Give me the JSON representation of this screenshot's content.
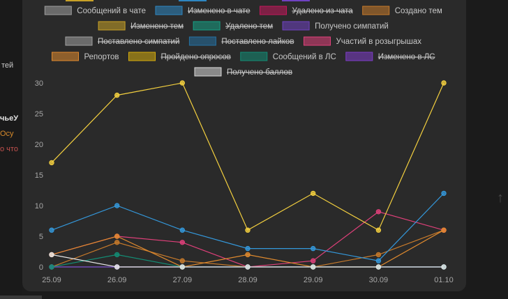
{
  "page": {
    "left_fragments": [
      "тей",
      "чьеУ",
      "Осу",
      "о что"
    ],
    "scroll_up_icon": "arrow-up-icon"
  },
  "chart_data": {
    "type": "line",
    "title": "",
    "xlabel": "",
    "ylabel": "",
    "categories": [
      "25.09",
      "26.09",
      "27.09",
      "28.09",
      "29.09",
      "30.09",
      "01.10"
    ],
    "ylim": [
      0,
      30
    ],
    "yticks": [
      0,
      5,
      10,
      15,
      20,
      25,
      30
    ],
    "grid": false,
    "legend_position": "top",
    "series": [
      {
        "name": "Сообщений в чате",
        "color": "#9e9e9e",
        "hidden": false,
        "values": [
          0,
          0,
          0,
          0,
          0,
          0,
          0
        ]
      },
      {
        "name": "Изменено в чате",
        "color": "#2e86c1",
        "hidden": true,
        "values": null
      },
      {
        "name": "Удалено из чата",
        "color": "#c2185b",
        "hidden": true,
        "values": null
      },
      {
        "name": "Создано тем",
        "color": "#c77a2a",
        "hidden": false,
        "values": [
          0,
          4,
          1,
          0,
          0,
          2,
          6
        ]
      },
      {
        "name": "Изменено тем",
        "color": "#c9a227",
        "hidden": true,
        "values": null
      },
      {
        "name": "Удалено тем",
        "color": "#16a085",
        "hidden": true,
        "values": null
      },
      {
        "name": "Получено симпатий",
        "color": "#6f42c1",
        "hidden": false,
        "values": [
          0,
          0,
          0,
          0,
          0,
          0,
          0
        ]
      },
      {
        "name": "Поставлено симпатий",
        "color": "#a0a0a0",
        "hidden": true,
        "values": null
      },
      {
        "name": "Поставлено лайков",
        "color": "#2471a3",
        "hidden": true,
        "values": null
      },
      {
        "name": "Участий в розыгрышах",
        "color": "#e0407a",
        "hidden": false,
        "values": [
          2,
          5,
          4,
          0,
          1,
          9,
          6
        ]
      },
      {
        "name": "Репортов",
        "color": "#e08a2e",
        "hidden": false,
        "values": [
          2,
          5,
          0,
          2,
          0,
          0,
          6
        ]
      },
      {
        "name": "Пройдено опросов",
        "color": "#d4ac0d",
        "hidden": true,
        "values": null
      },
      {
        "name": "Сообщений в ЛС",
        "color": "#138d75",
        "hidden": false,
        "values": [
          0,
          2,
          0,
          0,
          0,
          0,
          0
        ]
      },
      {
        "name": "Изменено в ЛС",
        "color": "#7d3cc8",
        "hidden": true,
        "values": null
      },
      {
        "name": "Получено баллов",
        "color": "#d9d9d9",
        "hidden": true,
        "values": null
      },
      {
        "name": "",
        "color": "#f4d03f",
        "hidden": false,
        "values": [
          17,
          28,
          30,
          6,
          12,
          6,
          30
        ]
      },
      {
        "name": "",
        "color": "#3498db",
        "hidden": false,
        "values": [
          6,
          10,
          6,
          3,
          3,
          1,
          12
        ]
      },
      {
        "name": "",
        "color": "#e6e6e6",
        "hidden": false,
        "values": [
          2,
          0,
          0,
          0,
          0,
          0,
          0
        ]
      }
    ]
  }
}
